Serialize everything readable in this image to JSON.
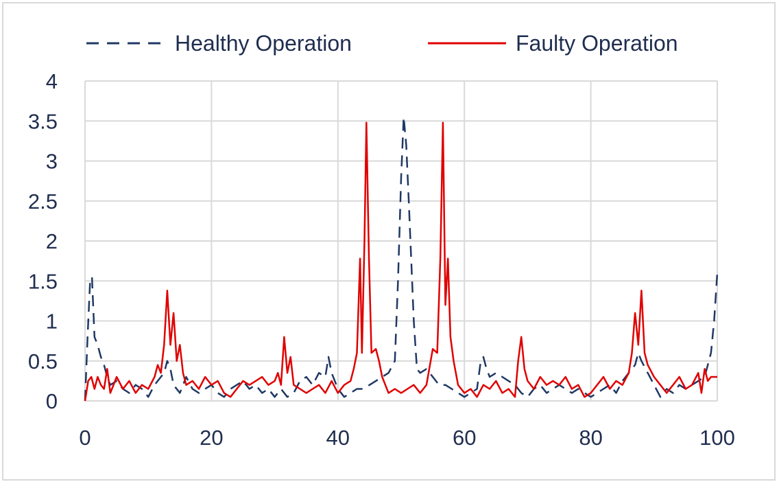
{
  "chart_data": {
    "type": "line",
    "title": "",
    "xlabel": "",
    "ylabel": "",
    "xlim": [
      0,
      100
    ],
    "ylim": [
      0,
      4
    ],
    "x_ticks": [
      0,
      20,
      40,
      60,
      80,
      100
    ],
    "y_ticks": [
      0,
      0.5,
      1,
      1.5,
      2,
      2.5,
      3,
      3.5,
      4
    ],
    "x_tick_labels": [
      "0",
      "20",
      "40",
      "60",
      "80",
      "100"
    ],
    "y_tick_labels": [
      "0",
      "0.5",
      "1",
      "1.5",
      "2",
      "2.5",
      "3",
      "3.5",
      "4"
    ],
    "grid": true,
    "legend_position": "top",
    "series": [
      {
        "name": "Healthy Operation",
        "color": "#1f3864",
        "dash": "dashed",
        "points": [
          [
            0,
            0
          ],
          [
            0.4,
            0.8
          ],
          [
            0.8,
            1.5
          ],
          [
            1.1,
            1.55
          ],
          [
            1.5,
            0.8
          ],
          [
            2,
            0.7
          ],
          [
            2.5,
            0.55
          ],
          [
            3,
            0.45
          ],
          [
            3.5,
            0.3
          ],
          [
            4,
            0.2
          ],
          [
            5,
            0.25
          ],
          [
            6,
            0.15
          ],
          [
            7,
            0.1
          ],
          [
            8,
            0.2
          ],
          [
            9,
            0.15
          ],
          [
            10,
            0.05
          ],
          [
            11,
            0.2
          ],
          [
            12,
            0.3
          ],
          [
            12.5,
            0.35
          ],
          [
            13,
            0.5
          ],
          [
            13.5,
            0.4
          ],
          [
            14,
            0.2
          ],
          [
            15,
            0.1
          ],
          [
            16,
            0.3
          ],
          [
            17,
            0.15
          ],
          [
            18,
            0.1
          ],
          [
            19,
            0.15
          ],
          [
            20,
            0.2
          ],
          [
            21,
            0.1
          ],
          [
            22,
            0.05
          ],
          [
            23,
            0.15
          ],
          [
            24,
            0.2
          ],
          [
            25,
            0.25
          ],
          [
            26,
            0.15
          ],
          [
            27,
            0.2
          ],
          [
            28,
            0.1
          ],
          [
            29,
            0.15
          ],
          [
            30,
            0.05
          ],
          [
            31,
            0.15
          ],
          [
            32,
            0.05
          ],
          [
            33,
            0.1
          ],
          [
            34,
            0.25
          ],
          [
            35,
            0.3
          ],
          [
            36,
            0.2
          ],
          [
            37,
            0.35
          ],
          [
            38,
            0.3
          ],
          [
            38.5,
            0.55
          ],
          [
            39,
            0.35
          ],
          [
            40,
            0.15
          ],
          [
            41,
            0.05
          ],
          [
            42,
            0.1
          ],
          [
            43,
            0.15
          ],
          [
            44,
            0.15
          ],
          [
            45,
            0.2
          ],
          [
            46,
            0.25
          ],
          [
            47,
            0.3
          ],
          [
            48,
            0.35
          ],
          [
            49,
            0.5
          ],
          [
            49.5,
            1.5
          ],
          [
            50,
            2.8
          ],
          [
            50.4,
            3.55
          ],
          [
            50.8,
            3.2
          ],
          [
            51.2,
            2.5
          ],
          [
            52,
            1.0
          ],
          [
            52.5,
            0.4
          ],
          [
            53,
            0.35
          ],
          [
            54,
            0.4
          ],
          [
            55,
            0.3
          ],
          [
            56,
            0.2
          ],
          [
            57,
            0.2
          ],
          [
            58,
            0.15
          ],
          [
            59,
            0.1
          ],
          [
            60,
            0.05
          ],
          [
            61,
            0.1
          ],
          [
            62,
            0.15
          ],
          [
            62.5,
            0.45
          ],
          [
            63,
            0.55
          ],
          [
            63.5,
            0.4
          ],
          [
            64,
            0.3
          ],
          [
            65,
            0.35
          ],
          [
            66,
            0.3
          ],
          [
            67,
            0.25
          ],
          [
            68,
            0.2
          ],
          [
            69,
            0.1
          ],
          [
            70,
            0.05
          ],
          [
            71,
            0.15
          ],
          [
            72,
            0.2
          ],
          [
            73,
            0.1
          ],
          [
            74,
            0.15
          ],
          [
            75,
            0.2
          ],
          [
            76,
            0.15
          ],
          [
            77,
            0.1
          ],
          [
            78,
            0.15
          ],
          [
            79,
            0.1
          ],
          [
            80,
            0.05
          ],
          [
            81,
            0.1
          ],
          [
            82,
            0.15
          ],
          [
            83,
            0.2
          ],
          [
            84,
            0.1
          ],
          [
            85,
            0.25
          ],
          [
            86,
            0.35
          ],
          [
            87,
            0.45
          ],
          [
            87.5,
            0.6
          ],
          [
            88,
            0.5
          ],
          [
            89,
            0.35
          ],
          [
            90,
            0.2
          ],
          [
            91,
            0.05
          ],
          [
            92,
            0.15
          ],
          [
            93,
            0.1
          ],
          [
            94,
            0.2
          ],
          [
            95,
            0.15
          ],
          [
            96,
            0.2
          ],
          [
            97,
            0.25
          ],
          [
            98,
            0.3
          ],
          [
            99,
            0.6
          ],
          [
            99.5,
            1.0
          ],
          [
            100,
            1.6
          ]
        ]
      },
      {
        "name": "Faulty Operation",
        "color": "#e00000",
        "dash": "solid",
        "points": [
          [
            0,
            0
          ],
          [
            0.5,
            0.25
          ],
          [
            1,
            0.3
          ],
          [
            1.5,
            0.15
          ],
          [
            2,
            0.3
          ],
          [
            2.5,
            0.2
          ],
          [
            3,
            0.15
          ],
          [
            3.5,
            0.4
          ],
          [
            4,
            0.1
          ],
          [
            5,
            0.3
          ],
          [
            6,
            0.15
          ],
          [
            7,
            0.25
          ],
          [
            8,
            0.1
          ],
          [
            9,
            0.2
          ],
          [
            10,
            0.15
          ],
          [
            11,
            0.3
          ],
          [
            11.5,
            0.45
          ],
          [
            12,
            0.35
          ],
          [
            12.5,
            0.7
          ],
          [
            13,
            1.38
          ],
          [
            13.5,
            0.7
          ],
          [
            14,
            1.1
          ],
          [
            14.5,
            0.5
          ],
          [
            15,
            0.7
          ],
          [
            15.5,
            0.35
          ],
          [
            16,
            0.2
          ],
          [
            17,
            0.25
          ],
          [
            18,
            0.15
          ],
          [
            19,
            0.3
          ],
          [
            20,
            0.2
          ],
          [
            21,
            0.25
          ],
          [
            22,
            0.1
          ],
          [
            23,
            0.05
          ],
          [
            24,
            0.15
          ],
          [
            25,
            0.25
          ],
          [
            26,
            0.2
          ],
          [
            27,
            0.25
          ],
          [
            28,
            0.3
          ],
          [
            29,
            0.2
          ],
          [
            30,
            0.25
          ],
          [
            30.5,
            0.35
          ],
          [
            31,
            0.2
          ],
          [
            31.5,
            0.8
          ],
          [
            32,
            0.35
          ],
          [
            32.5,
            0.55
          ],
          [
            33,
            0.2
          ],
          [
            34,
            0.15
          ],
          [
            35,
            0.1
          ],
          [
            36,
            0.15
          ],
          [
            37,
            0.2
          ],
          [
            38,
            0.1
          ],
          [
            39,
            0.25
          ],
          [
            40,
            0.1
          ],
          [
            41,
            0.2
          ],
          [
            42,
            0.25
          ],
          [
            42.5,
            0.4
          ],
          [
            43,
            0.6
          ],
          [
            43.5,
            1.78
          ],
          [
            43.8,
            0.6
          ],
          [
            44.2,
            2.0
          ],
          [
            44.5,
            3.48
          ],
          [
            44.9,
            1.8
          ],
          [
            45.3,
            0.6
          ],
          [
            46,
            0.65
          ],
          [
            46.5,
            0.5
          ],
          [
            47,
            0.3
          ],
          [
            48,
            0.1
          ],
          [
            49,
            0.15
          ],
          [
            50,
            0.1
          ],
          [
            51,
            0.15
          ],
          [
            52,
            0.2
          ],
          [
            53,
            0.1
          ],
          [
            54,
            0.2
          ],
          [
            55,
            0.65
          ],
          [
            55.7,
            0.6
          ],
          [
            56.2,
            1.8
          ],
          [
            56.6,
            3.48
          ],
          [
            57,
            1.2
          ],
          [
            57.4,
            1.78
          ],
          [
            57.8,
            0.8
          ],
          [
            58.3,
            0.5
          ],
          [
            59,
            0.2
          ],
          [
            60,
            0.1
          ],
          [
            61,
            0.15
          ],
          [
            62,
            0.05
          ],
          [
            63,
            0.2
          ],
          [
            64,
            0.15
          ],
          [
            65,
            0.25
          ],
          [
            66,
            0.1
          ],
          [
            67,
            0.15
          ],
          [
            68,
            0.05
          ],
          [
            68.5,
            0.5
          ],
          [
            69,
            0.8
          ],
          [
            69.5,
            0.4
          ],
          [
            70,
            0.25
          ],
          [
            71,
            0.15
          ],
          [
            72,
            0.3
          ],
          [
            73,
            0.2
          ],
          [
            74,
            0.25
          ],
          [
            75,
            0.2
          ],
          [
            76,
            0.3
          ],
          [
            77,
            0.15
          ],
          [
            78,
            0.2
          ],
          [
            79,
            0.05
          ],
          [
            80,
            0.1
          ],
          [
            81,
            0.2
          ],
          [
            82,
            0.3
          ],
          [
            83,
            0.15
          ],
          [
            84,
            0.25
          ],
          [
            85,
            0.2
          ],
          [
            86,
            0.35
          ],
          [
            86.5,
            0.6
          ],
          [
            87,
            1.1
          ],
          [
            87.5,
            0.7
          ],
          [
            88,
            1.38
          ],
          [
            88.5,
            0.6
          ],
          [
            89,
            0.45
          ],
          [
            90,
            0.3
          ],
          [
            91,
            0.2
          ],
          [
            92,
            0.1
          ],
          [
            93,
            0.2
          ],
          [
            94,
            0.3
          ],
          [
            95,
            0.15
          ],
          [
            96,
            0.2
          ],
          [
            97,
            0.35
          ],
          [
            97.5,
            0.1
          ],
          [
            98,
            0.4
          ],
          [
            98.5,
            0.25
          ],
          [
            99,
            0.3
          ],
          [
            100,
            0.3
          ]
        ]
      }
    ]
  }
}
